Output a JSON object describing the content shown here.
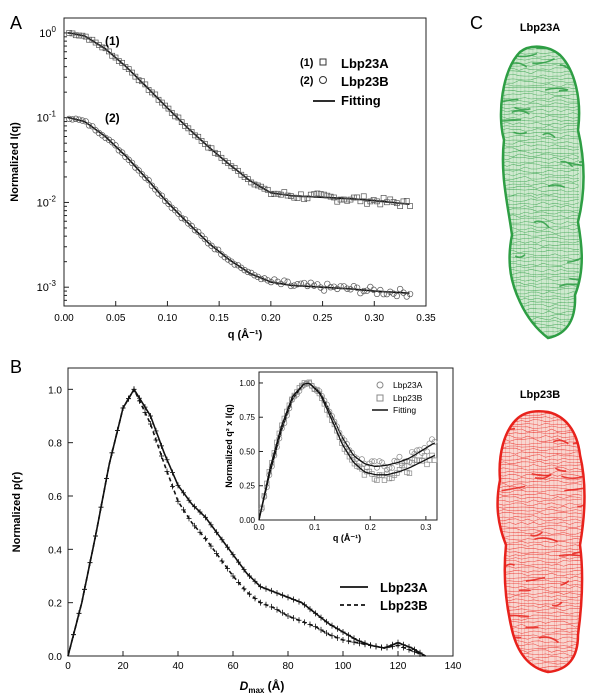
{
  "panel_labels": {
    "a": "A",
    "b": "B",
    "c": "C"
  },
  "chart_data": [
    {
      "panel": "A",
      "type": "scatter",
      "xlabel": "q (Å⁻¹)",
      "ylabel": "Normalized I(q)",
      "xlim": [
        0.0,
        0.35
      ],
      "ylim": [
        0.0006,
        1.5
      ],
      "yscale": "log",
      "xticks": [
        "0.00",
        "0.05",
        "0.10",
        "0.15",
        "0.20",
        "0.25",
        "0.30",
        "0.35"
      ],
      "yticks": [
        {
          "base": "10",
          "exp": "0"
        },
        {
          "base": "10",
          "exp": "-1"
        },
        {
          "base": "10",
          "exp": "-2"
        },
        {
          "base": "10",
          "exp": "-3"
        }
      ],
      "legend": {
        "position": "top-right",
        "entries": [
          {
            "tag": "(1)",
            "marker": "square",
            "label": "Lbp23A"
          },
          {
            "tag": "(2)",
            "marker": "circle",
            "label": "Lbp23B"
          },
          {
            "tag": "",
            "marker": "line",
            "label": "Fitting"
          }
        ]
      },
      "curve_tags": [
        "(1)",
        "(2)"
      ],
      "series": [
        {
          "tag": "(1)",
          "label": "Lbp23A",
          "x": [
            0.005,
            0.02,
            0.04,
            0.06,
            0.08,
            0.1,
            0.12,
            0.14,
            0.16,
            0.18,
            0.2,
            0.22,
            0.25,
            0.28,
            0.3,
            0.335
          ],
          "y": [
            1.0,
            0.92,
            0.65,
            0.4,
            0.23,
            0.13,
            0.075,
            0.045,
            0.028,
            0.018,
            0.013,
            0.012,
            0.0115,
            0.011,
            0.0105,
            0.0095
          ]
        },
        {
          "tag": "(2)",
          "label": "Lbp23B",
          "x": [
            0.005,
            0.02,
            0.04,
            0.06,
            0.08,
            0.1,
            0.12,
            0.14,
            0.16,
            0.18,
            0.2,
            0.22,
            0.25,
            0.28,
            0.3,
            0.335
          ],
          "y": [
            0.1,
            0.09,
            0.06,
            0.035,
            0.019,
            0.01,
            0.0057,
            0.0033,
            0.0021,
            0.00145,
            0.00115,
            0.00105,
            0.001,
            0.00095,
            0.0009,
            0.00085
          ]
        }
      ]
    },
    {
      "panel": "B",
      "type": "line",
      "xlabel": "D",
      "xlabel_sub": "max",
      "xlabel_unit": " (Å)",
      "ylabel": "Normalized p(r)",
      "xlim": [
        0,
        140
      ],
      "ylim": [
        0.0,
        1.08
      ],
      "xticks": [
        "0",
        "20",
        "40",
        "60",
        "80",
        "100",
        "120",
        "140"
      ],
      "yticks": [
        "0.0",
        "0.2",
        "0.4",
        "0.6",
        "0.8",
        "1.0"
      ],
      "legend": {
        "position": "bottom-right",
        "entries": [
          {
            "style": "solid",
            "label": "Lbp23A"
          },
          {
            "style": "dashed",
            "label": "Lbp23B"
          }
        ]
      },
      "series": [
        {
          "label": "Lbp23A",
          "style": "solid",
          "x": [
            0,
            5,
            10,
            15,
            20,
            24,
            30,
            35,
            40,
            45,
            50,
            55,
            60,
            65,
            70,
            75,
            80,
            85,
            90,
            95,
            100,
            105,
            110,
            115,
            120,
            125,
            130
          ],
          "y": [
            0,
            0.2,
            0.45,
            0.72,
            0.93,
            1.0,
            0.9,
            0.76,
            0.64,
            0.57,
            0.52,
            0.45,
            0.38,
            0.31,
            0.26,
            0.24,
            0.22,
            0.2,
            0.16,
            0.12,
            0.09,
            0.06,
            0.04,
            0.03,
            0.05,
            0.03,
            0.0
          ]
        },
        {
          "label": "Lbp23B",
          "style": "dashed",
          "x": [
            0,
            5,
            10,
            15,
            20,
            24,
            30,
            35,
            40,
            45,
            50,
            55,
            60,
            65,
            70,
            75,
            80,
            85,
            90,
            95,
            100,
            105,
            110,
            115,
            120,
            125,
            130
          ],
          "y": [
            0,
            0.2,
            0.45,
            0.72,
            0.93,
            1.0,
            0.87,
            0.72,
            0.58,
            0.5,
            0.44,
            0.37,
            0.3,
            0.24,
            0.2,
            0.18,
            0.15,
            0.13,
            0.11,
            0.08,
            0.06,
            0.05,
            0.04,
            0.03,
            0.04,
            0.02,
            0.0
          ]
        }
      ]
    },
    {
      "panel": "B-inset",
      "type": "scatter",
      "xlabel": "q (Å⁻¹)",
      "ylabel": "Normalized q² x I(q)",
      "xlim": [
        0.0,
        0.32
      ],
      "ylim": [
        0.0,
        1.08
      ],
      "xticks": [
        "0.0",
        "0.1",
        "0.2",
        "0.3"
      ],
      "yticks": [
        "0.00",
        "0.25",
        "0.50",
        "0.75",
        "1.00"
      ],
      "legend": {
        "position": "top-right",
        "entries": [
          {
            "marker": "circle",
            "label": "Lbp23A"
          },
          {
            "marker": "square",
            "label": "Lbp23B"
          },
          {
            "marker": "line",
            "label": "Fitting"
          }
        ]
      },
      "series": [
        {
          "label": "Lbp23A",
          "x": [
            0.0,
            0.02,
            0.04,
            0.06,
            0.08,
            0.09,
            0.11,
            0.13,
            0.15,
            0.17,
            0.19,
            0.21,
            0.23,
            0.25,
            0.27,
            0.29,
            0.31,
            0.32
          ],
          "y": [
            0.0,
            0.35,
            0.65,
            0.88,
            0.99,
            1.0,
            0.93,
            0.77,
            0.6,
            0.47,
            0.41,
            0.39,
            0.4,
            0.42,
            0.45,
            0.5,
            0.55,
            0.57
          ]
        },
        {
          "label": "Lbp23B",
          "x": [
            0.0,
            0.02,
            0.04,
            0.06,
            0.08,
            0.09,
            0.11,
            0.13,
            0.15,
            0.17,
            0.19,
            0.21,
            0.23,
            0.25,
            0.27,
            0.29,
            0.31,
            0.32
          ],
          "y": [
            0.0,
            0.38,
            0.68,
            0.9,
            0.99,
            1.0,
            0.92,
            0.74,
            0.55,
            0.42,
            0.35,
            0.33,
            0.33,
            0.35,
            0.38,
            0.42,
            0.46,
            0.48
          ]
        }
      ]
    }
  ],
  "models": [
    {
      "panel": "C",
      "title": "Lbp23A",
      "color": "#2e9e44",
      "fill": "#cfe9cf"
    },
    {
      "panel": "C",
      "title": "Lbp23B",
      "color": "#e8221c",
      "fill": "#f8d6d0"
    }
  ]
}
